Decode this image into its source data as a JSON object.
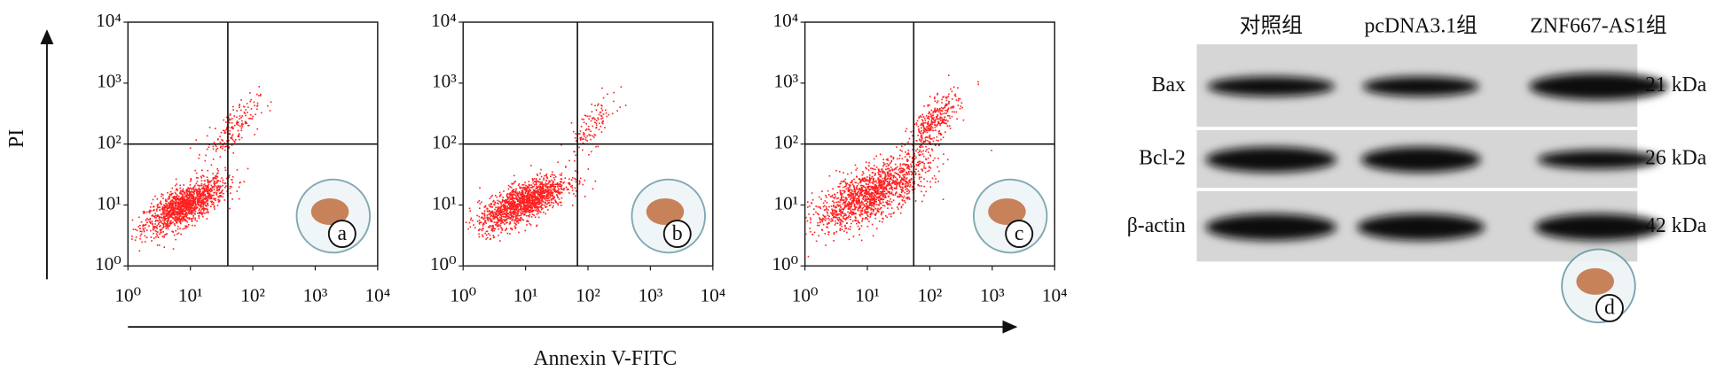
{
  "flow": {
    "y_label": "PI",
    "x_label": "Annexin V-FITC",
    "ticks": [
      "10⁰",
      "10¹",
      "10²",
      "10³",
      "10⁴"
    ],
    "panels": [
      "a",
      "b",
      "c"
    ]
  },
  "blot": {
    "lanes": [
      "对照组",
      "pcDNA3.1组",
      "ZNF667-AS1组"
    ],
    "rows": [
      {
        "protein": "Bax",
        "size": "21 kDa"
      },
      {
        "protein": "Bcl-2",
        "size": "26 kDa"
      },
      {
        "protein": "β-actin",
        "size": "42 kDa"
      }
    ],
    "panel": "d"
  }
}
